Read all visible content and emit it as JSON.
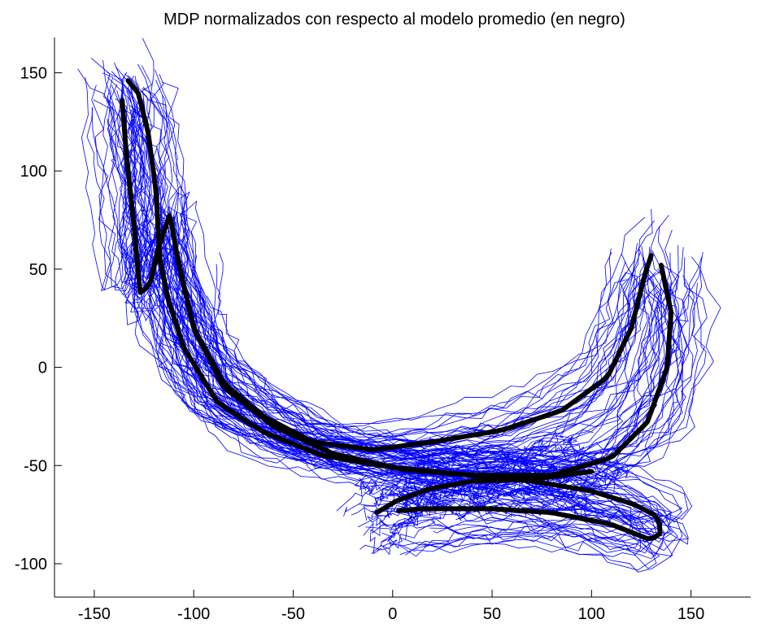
{
  "chart_data": {
    "type": "line",
    "title": "MDP normalizados con respecto al modelo promedio (en negro)",
    "xlabel": "",
    "ylabel": "",
    "xlim": [
      -170,
      180
    ],
    "ylim": [
      -117,
      168
    ],
    "xticks": [
      -150,
      -100,
      -50,
      0,
      50,
      100,
      150
    ],
    "yticks": [
      150,
      100,
      50,
      0,
      -50,
      -100
    ],
    "grid": false,
    "legend": "none",
    "colors": {
      "samples": "#0000ff",
      "mean": "#000000",
      "axes": "#000000"
    },
    "sample_count": 110,
    "series": [
      {
        "role": "mean",
        "values": [
          [
            -136,
            136
          ],
          [
            -134,
            110
          ],
          [
            -130,
            72
          ],
          [
            -127,
            38
          ],
          [
            -122,
            42
          ],
          [
            -118,
            60
          ],
          [
            -112,
            78
          ],
          [
            -108,
            55
          ],
          [
            -100,
            20
          ],
          [
            -85,
            -8
          ],
          [
            -65,
            -25
          ],
          [
            -40,
            -38
          ],
          [
            -10,
            -42
          ],
          [
            20,
            -38
          ],
          [
            55,
            -32
          ],
          [
            85,
            -22
          ],
          [
            108,
            -5
          ],
          [
            120,
            20
          ],
          [
            127,
            48
          ],
          [
            130,
            57
          ]
        ]
      },
      {
        "role": "mean",
        "values": [
          [
            -133,
            146
          ],
          [
            -128,
            140
          ],
          [
            -123,
            120
          ],
          [
            -119,
            90
          ],
          [
            -117,
            55
          ],
          [
            -113,
            35
          ],
          [
            -105,
            10
          ],
          [
            -88,
            -18
          ],
          [
            -65,
            -33
          ],
          [
            -35,
            -45
          ],
          [
            0,
            -51
          ],
          [
            40,
            -55
          ],
          [
            80,
            -55
          ],
          [
            110,
            -46
          ],
          [
            128,
            -28
          ],
          [
            138,
            0
          ],
          [
            140,
            28
          ],
          [
            135,
            52
          ]
        ]
      },
      {
        "role": "mean",
        "values": [
          [
            -108,
            55
          ],
          [
            -100,
            20
          ],
          [
            -85,
            -10
          ],
          [
            -60,
            -30
          ],
          [
            -30,
            -44
          ],
          [
            5,
            -52
          ],
          [
            40,
            -55
          ],
          [
            70,
            -58
          ],
          [
            100,
            -63
          ],
          [
            122,
            -70
          ],
          [
            133,
            -76
          ],
          [
            135,
            -84
          ],
          [
            130,
            -88
          ],
          [
            110,
            -80
          ],
          [
            80,
            -74
          ],
          [
            50,
            -72
          ],
          [
            15,
            -72
          ],
          [
            3,
            -73
          ]
        ]
      },
      {
        "role": "mean",
        "values": [
          [
            -8,
            -74
          ],
          [
            2,
            -68
          ],
          [
            18,
            -62
          ],
          [
            40,
            -58
          ],
          [
            70,
            -57
          ],
          [
            100,
            -53
          ]
        ]
      }
    ]
  }
}
